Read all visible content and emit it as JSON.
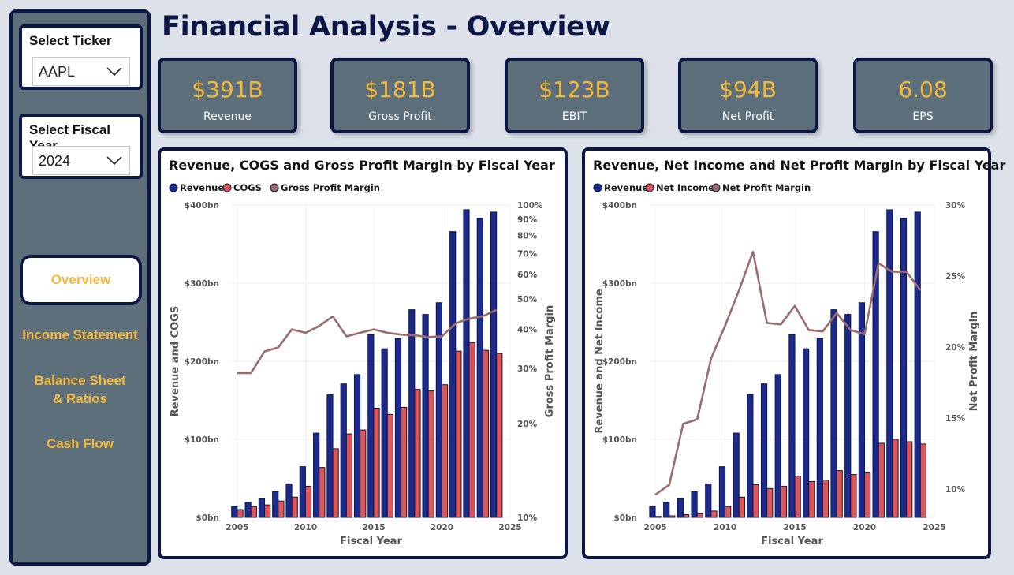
{
  "title": "Financial Analysis - Overview",
  "filters": {
    "ticker": {
      "label": "Select Ticker",
      "value": "AAPL"
    },
    "fiscal_year": {
      "label": "Select Fiscal Year",
      "value": "2024"
    }
  },
  "nav": {
    "active": "Overview",
    "income": "Income Statement",
    "balance": "Balance Sheet & Ratios",
    "cashflow": "Cash Flow"
  },
  "kpis": [
    {
      "value": "$391B",
      "label": "Revenue"
    },
    {
      "value": "$181B",
      "label": "Gross Profit"
    },
    {
      "value": "$123B",
      "label": "EBIT"
    },
    {
      "value": "$94B",
      "label": "Net Profit"
    },
    {
      "value": "6.08",
      "label": "EPS"
    }
  ],
  "colors": {
    "navy": "#0d1745",
    "revenue": "#1b2a8c",
    "cost": "#e05555",
    "line": "#9b6b6e",
    "accent": "#f5b93a",
    "panel": "#5c6f7a"
  },
  "chart_data": [
    {
      "type": "bar",
      "title": "Revenue, COGS and Gross Profit Margin by Fiscal Year",
      "xlabel": "Fiscal Year",
      "ylabel": "Revenue and COGS",
      "y2label": "Gross Profit Margin",
      "x": [
        2005,
        2006,
        2007,
        2008,
        2009,
        2010,
        2011,
        2012,
        2013,
        2014,
        2015,
        2016,
        2017,
        2018,
        2019,
        2020,
        2021,
        2022,
        2023,
        2024
      ],
      "xticks": [
        2005,
        2010,
        2015,
        2020,
        2025
      ],
      "ylim": [
        0,
        400
      ],
      "yticks": [
        {
          "v": 0,
          "label": "$0bn"
        },
        {
          "v": 100,
          "label": "$100bn"
        },
        {
          "v": 200,
          "label": "$200bn"
        },
        {
          "v": 300,
          "label": "$300bn"
        },
        {
          "v": 400,
          "label": "$400bn"
        }
      ],
      "y2scale": "log",
      "y2lim": [
        10,
        100
      ],
      "y2ticks": [
        {
          "v": 10,
          "label": "10%"
        },
        {
          "v": 20,
          "label": "20%"
        },
        {
          "v": 30,
          "label": "30%"
        },
        {
          "v": 40,
          "label": "40%"
        },
        {
          "v": 50,
          "label": "50%"
        },
        {
          "v": 60,
          "label": "60%"
        },
        {
          "v": 70,
          "label": "70%"
        },
        {
          "v": 80,
          "label": "80%"
        },
        {
          "v": 90,
          "label": "90%"
        },
        {
          "v": 100,
          "label": "100%"
        }
      ],
      "series": [
        {
          "name": "Revenue",
          "kind": "bar",
          "values": [
            14,
            19,
            24,
            33,
            43,
            65,
            108,
            157,
            171,
            183,
            234,
            216,
            229,
            266,
            260,
            275,
            366,
            394,
            383,
            391
          ]
        },
        {
          "name": "COGS",
          "kind": "bar",
          "values": [
            10,
            14,
            16,
            21,
            26,
            40,
            64,
            88,
            107,
            112,
            140,
            132,
            141,
            164,
            162,
            170,
            213,
            224,
            214,
            210
          ]
        },
        {
          "name": "Gross Profit Margin",
          "kind": "line",
          "values": [
            29,
            29,
            34,
            35,
            40,
            39,
            41,
            44,
            38,
            39,
            40,
            39,
            38.5,
            38.3,
            37.8,
            38,
            41.8,
            43.3,
            44.1,
            46.2
          ]
        }
      ]
    },
    {
      "type": "bar",
      "title": "Revenue, Net Income and Net Profit Margin by Fiscal Year",
      "xlabel": "Fiscal Year",
      "ylabel": "Revenue and Net Income",
      "y2label": "Net Profit Margin",
      "x": [
        2005,
        2006,
        2007,
        2008,
        2009,
        2010,
        2011,
        2012,
        2013,
        2014,
        2015,
        2016,
        2017,
        2018,
        2019,
        2020,
        2021,
        2022,
        2023,
        2024
      ],
      "xticks": [
        2005,
        2010,
        2015,
        2020,
        2025
      ],
      "ylim": [
        0,
        400
      ],
      "yticks": [
        {
          "v": 0,
          "label": "$0bn"
        },
        {
          "v": 100,
          "label": "$100bn"
        },
        {
          "v": 200,
          "label": "$200bn"
        },
        {
          "v": 300,
          "label": "$300bn"
        },
        {
          "v": 400,
          "label": "$400bn"
        }
      ],
      "y2scale": "linear",
      "y2lim": [
        8,
        30
      ],
      "y2ticks": [
        {
          "v": 10,
          "label": "10%"
        },
        {
          "v": 15,
          "label": "15%"
        },
        {
          "v": 20,
          "label": "20%"
        },
        {
          "v": 25,
          "label": "25%"
        },
        {
          "v": 30,
          "label": "30%"
        }
      ],
      "series": [
        {
          "name": "Revenue",
          "kind": "bar",
          "values": [
            14,
            19,
            24,
            33,
            43,
            65,
            108,
            157,
            171,
            183,
            234,
            216,
            229,
            266,
            260,
            275,
            366,
            394,
            383,
            391
          ]
        },
        {
          "name": "Net Income",
          "kind": "bar",
          "values": [
            1.3,
            2,
            3.5,
            4.8,
            8.2,
            14,
            26,
            42,
            37,
            40,
            53,
            46,
            48,
            60,
            55,
            57,
            95,
            100,
            97,
            94
          ]
        },
        {
          "name": "Net Profit Margin",
          "kind": "line",
          "values": [
            9.6,
            10.3,
            14.6,
            14.9,
            19.2,
            21.5,
            24,
            26.7,
            21.7,
            21.6,
            22.9,
            21.2,
            21.1,
            22.4,
            21.2,
            20.9,
            25.9,
            25.3,
            25.3,
            24
          ]
        }
      ]
    }
  ]
}
